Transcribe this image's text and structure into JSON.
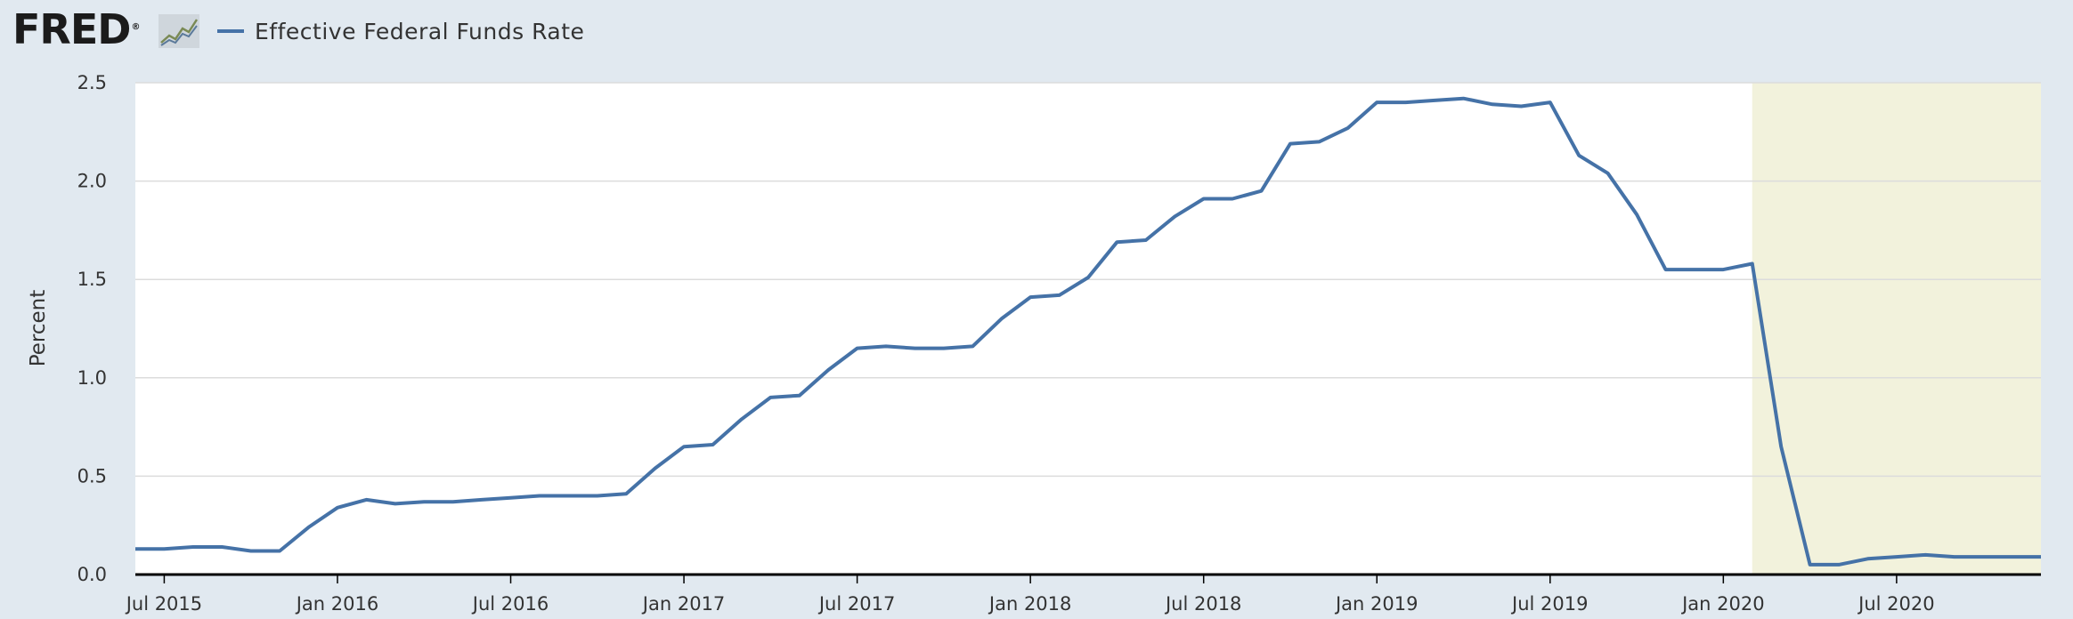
{
  "header": {
    "logo_text": "FRED",
    "logo_mark": "®",
    "logo_icon": "trend-graph-icon",
    "legend_label": "Effective Federal Funds Rate"
  },
  "colors": {
    "series": "#4572a7",
    "recession": "#f2f2dc",
    "background": "#e1e9f0",
    "plot": "#ffffff",
    "grid": "#dcdcdc"
  },
  "chart_data": {
    "type": "line",
    "title": "",
    "xlabel": "",
    "ylabel": "Percent",
    "ylim": [
      0,
      2.5
    ],
    "yticks": [
      "0.0",
      "0.5",
      "1.0",
      "1.5",
      "2.0",
      "2.5"
    ],
    "xlim": [
      "2015-06",
      "2020-12"
    ],
    "xticks": [
      {
        "label": "Jul 2015",
        "date": "2015-07"
      },
      {
        "label": "Jan 2016",
        "date": "2016-01"
      },
      {
        "label": "Jul 2016",
        "date": "2016-07"
      },
      {
        "label": "Jan 2017",
        "date": "2017-01"
      },
      {
        "label": "Jul 2017",
        "date": "2017-07"
      },
      {
        "label": "Jan 2018",
        "date": "2018-01"
      },
      {
        "label": "Jul 2018",
        "date": "2018-07"
      },
      {
        "label": "Jan 2019",
        "date": "2019-01"
      },
      {
        "label": "Jul 2019",
        "date": "2019-07"
      },
      {
        "label": "Jan 2020",
        "date": "2020-01"
      },
      {
        "label": "Jul 2020",
        "date": "2020-07"
      }
    ],
    "grid": true,
    "legend": "top-left",
    "recession": {
      "start": "2020-02",
      "end": "2020-12"
    },
    "series": [
      {
        "name": "Effective Federal Funds Rate",
        "x": [
          "2015-06",
          "2015-07",
          "2015-08",
          "2015-09",
          "2015-10",
          "2015-11",
          "2015-12",
          "2016-01",
          "2016-02",
          "2016-03",
          "2016-04",
          "2016-05",
          "2016-06",
          "2016-07",
          "2016-08",
          "2016-09",
          "2016-10",
          "2016-11",
          "2016-12",
          "2017-01",
          "2017-02",
          "2017-03",
          "2017-04",
          "2017-05",
          "2017-06",
          "2017-07",
          "2017-08",
          "2017-09",
          "2017-10",
          "2017-11",
          "2017-12",
          "2018-01",
          "2018-02",
          "2018-03",
          "2018-04",
          "2018-05",
          "2018-06",
          "2018-07",
          "2018-08",
          "2018-09",
          "2018-10",
          "2018-11",
          "2018-12",
          "2019-01",
          "2019-02",
          "2019-03",
          "2019-04",
          "2019-05",
          "2019-06",
          "2019-07",
          "2019-08",
          "2019-09",
          "2019-10",
          "2019-11",
          "2019-12",
          "2020-01",
          "2020-02",
          "2020-03",
          "2020-04",
          "2020-05",
          "2020-06",
          "2020-07",
          "2020-08",
          "2020-09",
          "2020-10",
          "2020-11",
          "2020-12"
        ],
        "values": [
          0.13,
          0.13,
          0.14,
          0.14,
          0.12,
          0.12,
          0.24,
          0.34,
          0.38,
          0.36,
          0.37,
          0.37,
          0.38,
          0.39,
          0.4,
          0.4,
          0.4,
          0.41,
          0.54,
          0.65,
          0.66,
          0.79,
          0.9,
          0.91,
          1.04,
          1.15,
          1.16,
          1.15,
          1.15,
          1.16,
          1.3,
          1.41,
          1.42,
          1.51,
          1.69,
          1.7,
          1.82,
          1.91,
          1.91,
          1.95,
          2.19,
          2.2,
          2.27,
          2.4,
          2.4,
          2.41,
          2.42,
          2.39,
          2.38,
          2.4,
          2.13,
          2.04,
          1.83,
          1.55,
          1.55,
          1.55,
          1.58,
          0.65,
          0.05,
          0.05,
          0.08,
          0.09,
          0.1,
          0.09,
          0.09,
          0.09,
          0.09
        ]
      }
    ]
  }
}
